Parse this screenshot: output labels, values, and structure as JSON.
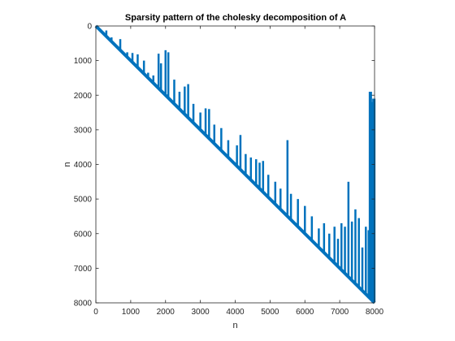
{
  "chart_data": {
    "type": "scatter",
    "title": "Sparsity pattern of the cholesky decomposition of A",
    "xlabel": "n",
    "ylabel": "n",
    "xlim": [
      0,
      8000
    ],
    "ylim": [
      8000,
      0
    ],
    "y_reversed": true,
    "x_ticks": [
      "0",
      "1000",
      "2000",
      "3000",
      "4000",
      "5000",
      "6000",
      "7000",
      "8000"
    ],
    "y_ticks": [
      "0",
      "1000",
      "2000",
      "3000",
      "4000",
      "5000",
      "6000",
      "7000",
      "8000"
    ],
    "grid": false,
    "marker_color": "#0072BD",
    "pattern": "upper-triangular",
    "diagonal": {
      "from": [
        0,
        0
      ],
      "to": [
        8000,
        8000
      ]
    },
    "column_spikes": [
      {
        "x": 300,
        "y": 130
      },
      {
        "x": 450,
        "y": 330
      },
      {
        "x": 700,
        "y": 380
      },
      {
        "x": 900,
        "y": 760
      },
      {
        "x": 1050,
        "y": 780
      },
      {
        "x": 1200,
        "y": 820
      },
      {
        "x": 1380,
        "y": 1000
      },
      {
        "x": 1500,
        "y": 1350
      },
      {
        "x": 1650,
        "y": 1430
      },
      {
        "x": 1800,
        "y": 800
      },
      {
        "x": 1870,
        "y": 1080
      },
      {
        "x": 2000,
        "y": 700
      },
      {
        "x": 2080,
        "y": 760
      },
      {
        "x": 2250,
        "y": 1550
      },
      {
        "x": 2400,
        "y": 1900
      },
      {
        "x": 2550,
        "y": 1750
      },
      {
        "x": 2650,
        "y": 1680
      },
      {
        "x": 2800,
        "y": 2250
      },
      {
        "x": 3000,
        "y": 2500
      },
      {
        "x": 3150,
        "y": 2380
      },
      {
        "x": 3250,
        "y": 2400
      },
      {
        "x": 3400,
        "y": 2850
      },
      {
        "x": 3600,
        "y": 2950
      },
      {
        "x": 3800,
        "y": 3300
      },
      {
        "x": 4050,
        "y": 3450
      },
      {
        "x": 4150,
        "y": 3150
      },
      {
        "x": 4300,
        "y": 3700
      },
      {
        "x": 4450,
        "y": 3800
      },
      {
        "x": 4600,
        "y": 3850
      },
      {
        "x": 4700,
        "y": 3950
      },
      {
        "x": 4800,
        "y": 3900
      },
      {
        "x": 4950,
        "y": 4300
      },
      {
        "x": 5150,
        "y": 4500
      },
      {
        "x": 5300,
        "y": 4700
      },
      {
        "x": 5500,
        "y": 3300
      },
      {
        "x": 5600,
        "y": 4850
      },
      {
        "x": 5800,
        "y": 5000
      },
      {
        "x": 6000,
        "y": 5200
      },
      {
        "x": 6200,
        "y": 5500
      },
      {
        "x": 6400,
        "y": 5850
      },
      {
        "x": 6550,
        "y": 5700
      },
      {
        "x": 6700,
        "y": 6000
      },
      {
        "x": 6850,
        "y": 5800
      },
      {
        "x": 6950,
        "y": 6150
      },
      {
        "x": 7050,
        "y": 5700
      },
      {
        "x": 7150,
        "y": 5800
      },
      {
        "x": 7250,
        "y": 4500
      },
      {
        "x": 7350,
        "y": 5650
      },
      {
        "x": 7450,
        "y": 5300
      },
      {
        "x": 7550,
        "y": 5550
      },
      {
        "x": 7650,
        "y": 6400
      },
      {
        "x": 7750,
        "y": 5800
      },
      {
        "x": 7830,
        "y": 5900
      },
      {
        "x": 7880,
        "y": 1900
      },
      {
        "x": 7930,
        "y": 2200
      },
      {
        "x": 7980,
        "y": 2100
      }
    ]
  }
}
